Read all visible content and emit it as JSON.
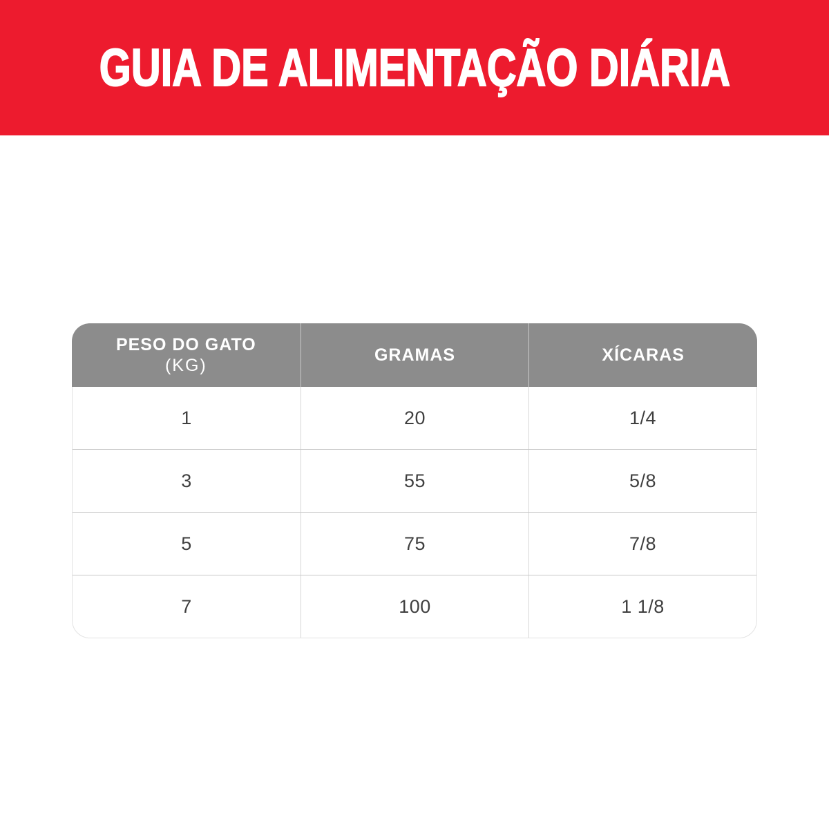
{
  "banner": {
    "title": "GUIA DE ALIMENTAÇÃO DIÁRIA",
    "background_color": "#ED1B2E",
    "text_color": "#FFFFFF"
  },
  "table": {
    "header": {
      "background_color": "#8C8C8C",
      "text_color": "#FFFFFF",
      "columns": [
        {
          "label": "PESO DO GATO",
          "sublabel": "(KG)"
        },
        {
          "label": "GRAMAS"
        },
        {
          "label": "XÍCARAS"
        }
      ]
    },
    "rows": [
      {
        "cells": [
          "1",
          "20",
          "1/4"
        ]
      },
      {
        "cells": [
          "3",
          "55",
          "5/8"
        ]
      },
      {
        "cells": [
          "5",
          "75",
          "7/8"
        ]
      },
      {
        "cells": [
          "7",
          "100",
          "1 1/8"
        ]
      }
    ]
  },
  "chart_data": {
    "type": "table",
    "title": "GUIA DE ALIMENTAÇÃO DIÁRIA",
    "columns": [
      "PESO DO GATO (KG)",
      "GRAMAS",
      "XÍCARAS"
    ],
    "rows": [
      [
        "1",
        "20",
        "1/4"
      ],
      [
        "3",
        "55",
        "5/8"
      ],
      [
        "5",
        "75",
        "7/8"
      ],
      [
        "7",
        "100",
        "1 1/8"
      ]
    ]
  }
}
